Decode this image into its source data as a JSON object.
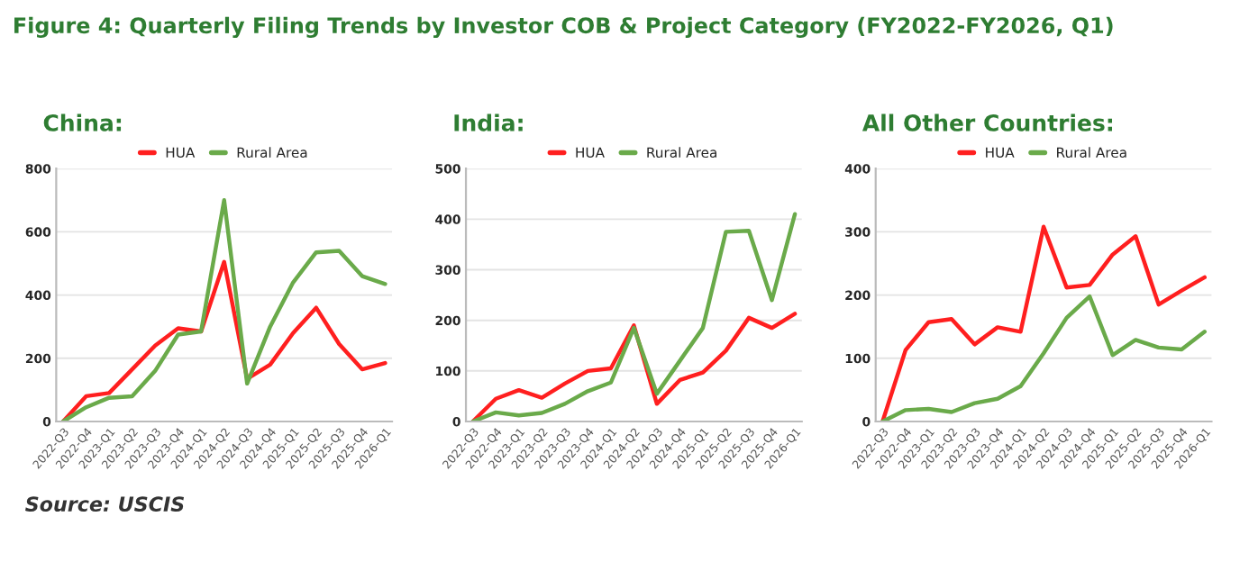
{
  "chart_data": [
    {
      "type": "line",
      "title": "Figure 4: Quarterly Filing Trends by Investor COB & Project Category (FY2022-FY2026, Q1)",
      "subtitle": "China:",
      "categories": [
        "2022-Q3",
        "2022-Q4",
        "2023-Q1",
        "2023-Q2",
        "2023-Q3",
        "2023-Q4",
        "2024-Q1",
        "2024-Q2",
        "2024-Q3",
        "2024-Q4",
        "2025-Q1",
        "2025-Q2",
        "2025-Q3",
        "2025-Q4",
        "2026-Q1"
      ],
      "series": [
        {
          "name": "HUA",
          "color": "#ff1f1f",
          "values": [
            0,
            80,
            90,
            165,
            240,
            295,
            285,
            505,
            135,
            180,
            280,
            360,
            245,
            165,
            185
          ]
        },
        {
          "name": "Rural Area",
          "color": "#6aaa4a",
          "values": [
            0,
            45,
            75,
            80,
            160,
            275,
            285,
            700,
            120,
            300,
            440,
            535,
            540,
            460,
            435
          ]
        }
      ],
      "ylim": [
        0,
        800
      ],
      "yticks": [
        0,
        200,
        400,
        600,
        800
      ],
      "grid": "y",
      "legend": "top",
      "marker": "none",
      "line_style": "solid",
      "annotations": [
        "Source: USCIS"
      ]
    },
    {
      "type": "line",
      "subtitle": "India:",
      "categories": [
        "2022-Q3",
        "2022-Q4",
        "2023-Q1",
        "2023-Q2",
        "2023-Q3",
        "2023-Q4",
        "2024-Q1",
        "2024-Q2",
        "2024-Q3",
        "2024-Q4",
        "2025-Q1",
        "2025-Q2",
        "2025-Q3",
        "2025-Q4",
        "2026-Q1"
      ],
      "series": [
        {
          "name": "HUA",
          "color": "#ff1f1f",
          "values": [
            0,
            45,
            62,
            47,
            75,
            100,
            105,
            190,
            35,
            82,
            97,
            140,
            205,
            185,
            213
          ]
        },
        {
          "name": "Rural Area",
          "color": "#6aaa4a",
          "values": [
            0,
            18,
            12,
            17,
            35,
            60,
            77,
            185,
            55,
            120,
            185,
            375,
            377,
            240,
            410
          ]
        }
      ],
      "ylim": [
        0,
        500
      ],
      "yticks": [
        0,
        100,
        200,
        300,
        400,
        500
      ],
      "grid": "y",
      "legend": "top",
      "marker": "none",
      "line_style": "solid"
    },
    {
      "type": "line",
      "subtitle": "All Other Countries:",
      "categories": [
        "2022-Q3",
        "2022-Q4",
        "2023-Q1",
        "2023-Q2",
        "2023-Q3",
        "2023-Q4",
        "2024-Q1",
        "2024-Q2",
        "2024-Q3",
        "2024-Q4",
        "2025-Q1",
        "2025-Q2",
        "2025-Q3",
        "2025-Q4",
        "2026-Q1"
      ],
      "series": [
        {
          "name": "HUA",
          "color": "#ff1f1f",
          "values": [
            0,
            113,
            157,
            162,
            122,
            149,
            142,
            308,
            212,
            216,
            264,
            293,
            185,
            207,
            228
          ]
        },
        {
          "name": "Rural Area",
          "color": "#6aaa4a",
          "values": [
            0,
            18,
            20,
            15,
            29,
            36,
            56,
            108,
            164,
            198,
            105,
            129,
            117,
            114,
            142
          ]
        }
      ],
      "ylim": [
        0,
        400
      ],
      "yticks": [
        0,
        100,
        200,
        300,
        400
      ],
      "grid": "y",
      "legend": "top",
      "marker": "none",
      "line_style": "solid"
    }
  ]
}
